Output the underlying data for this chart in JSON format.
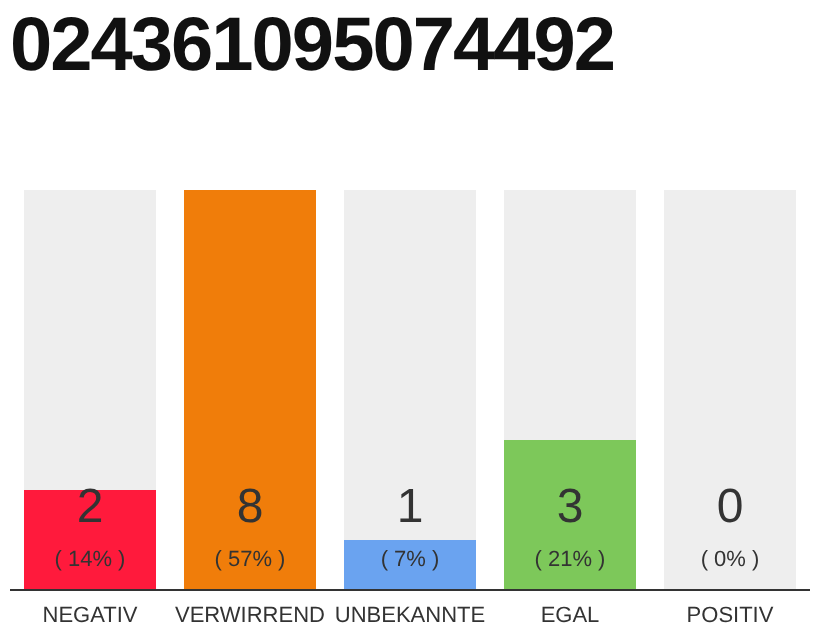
{
  "chart_data": {
    "type": "bar",
    "title": "024361095074492",
    "categories": [
      "NEGATIV",
      "VERWIRREND",
      "UNBEKANNTE",
      "EGAL",
      "POSITIV"
    ],
    "values": [
      2,
      8,
      1,
      3,
      0
    ],
    "colors": [
      "#ff1a3c",
      "#f07d0a",
      "#6aa3f0",
      "#7dc85a",
      "#d0d0d0"
    ],
    "data_labels": true,
    "annotations": [
      "( 14% )",
      "( 57% )",
      "( 7% )",
      "( 21% )",
      "( 0% )"
    ]
  }
}
